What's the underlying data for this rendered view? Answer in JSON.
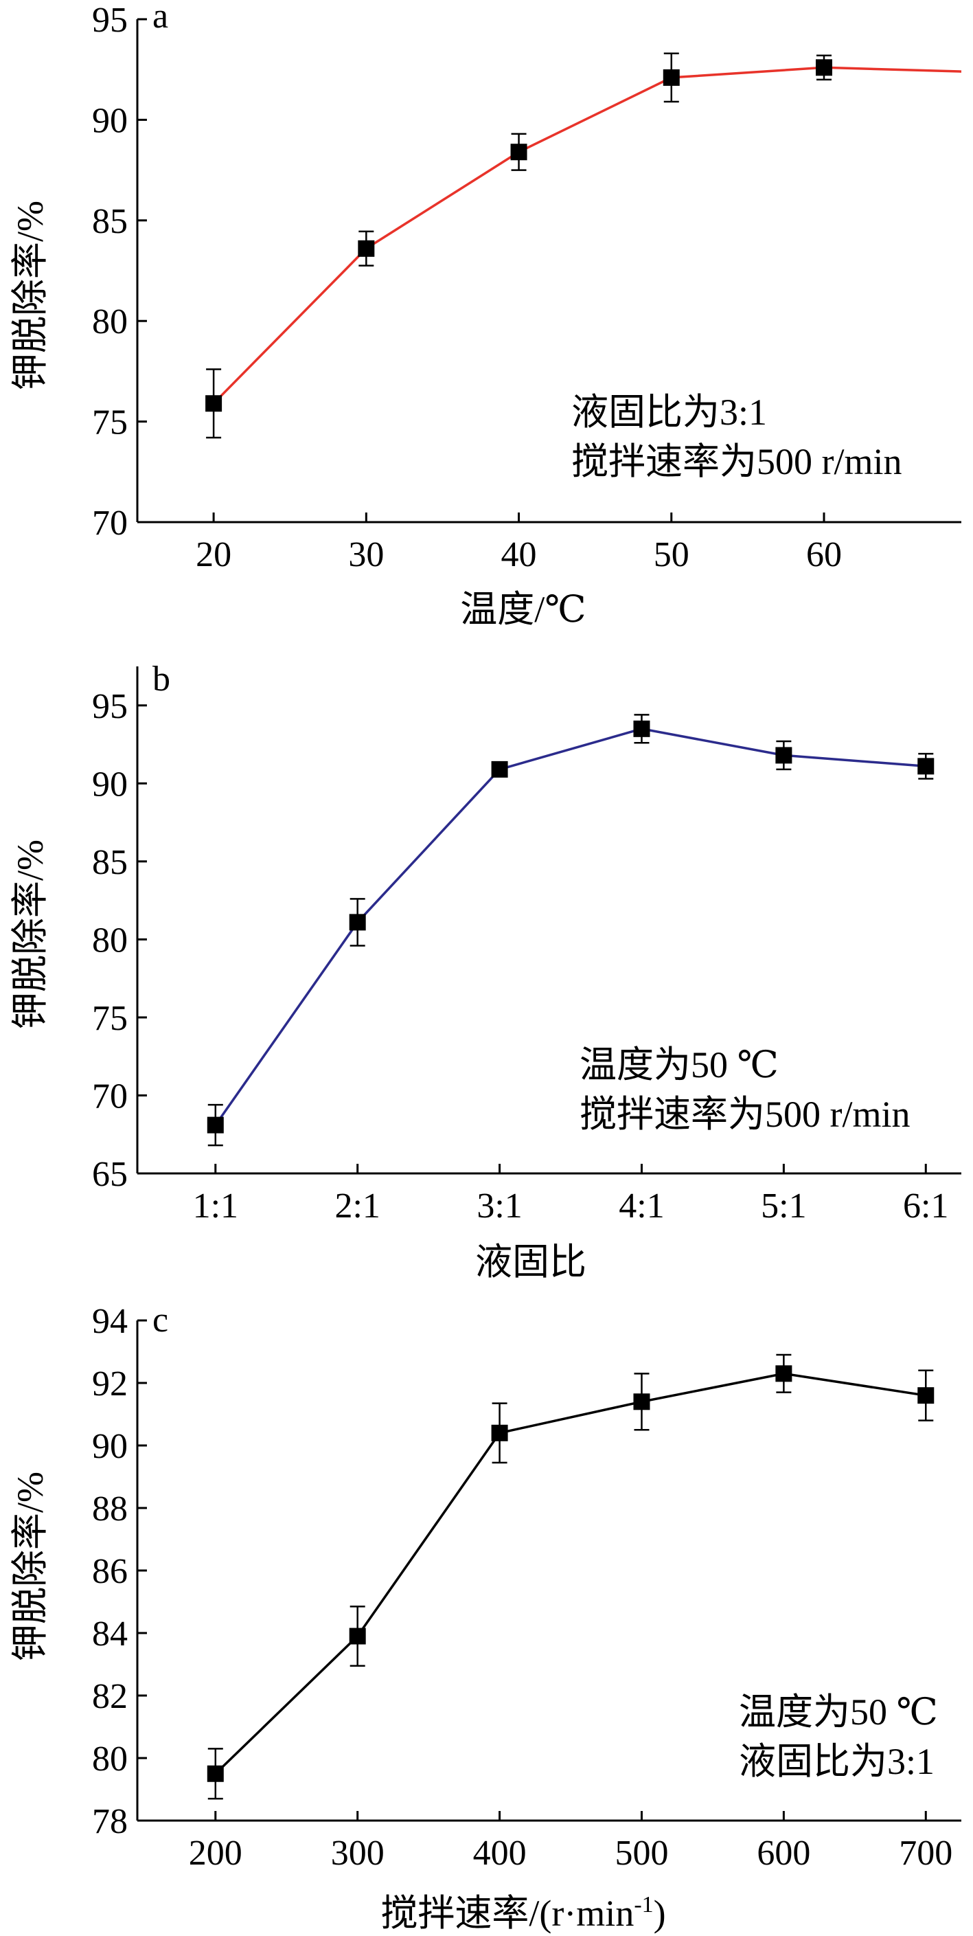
{
  "figure": {
    "panels": [
      {
        "letter": "a",
        "annotations": [
          "液固比为3:1",
          "搅拌速率为500 r/min"
        ]
      },
      {
        "letter": "b",
        "annotations": [
          "温度为50 ℃",
          "搅拌速率为500 r/min"
        ]
      },
      {
        "letter": "c",
        "annotations": [
          "温度为50 ℃",
          "液固比为3:1"
        ]
      }
    ]
  },
  "chart_data": [
    {
      "type": "line",
      "panel": "a",
      "title": "",
      "xlabel": "温度/℃",
      "ylabel": "钾脱除率/%",
      "xlim": [
        15,
        69
      ],
      "ylim": [
        70,
        95
      ],
      "xticks": [
        20,
        30,
        40,
        50,
        60
      ],
      "xtick_labels": [
        "20",
        "30",
        "40",
        "50",
        "60"
      ],
      "yticks": [
        70,
        75,
        80,
        85,
        90,
        95
      ],
      "ytick_labels": [
        "70",
        "75",
        "80",
        "85",
        "90",
        "95"
      ],
      "line_color": "#e8332a",
      "series": [
        {
          "x": [
            20,
            30,
            40,
            50,
            60
          ],
          "y": [
            75.9,
            83.6,
            88.4,
            92.1,
            92.6
          ],
          "error": [
            1.7,
            0.85,
            0.9,
            1.2,
            0.6
          ]
        }
      ],
      "line_extends_to": {
        "x": 69,
        "y": 92.4
      }
    },
    {
      "type": "line",
      "panel": "b",
      "title": "",
      "xlabel": "液固比",
      "ylabel": "钾脱除率/%",
      "xlim": [
        0.45,
        6.25
      ],
      "ylim": [
        65,
        97.5
      ],
      "xticks": [
        1,
        2,
        3,
        4,
        5,
        6
      ],
      "xtick_labels": [
        "1:1",
        "2:1",
        "3:1",
        "4:1",
        "5:1",
        "6:1"
      ],
      "yticks": [
        65,
        70,
        75,
        80,
        85,
        90,
        95
      ],
      "ytick_labels": [
        "65",
        "70",
        "75",
        "80",
        "85",
        "90",
        "95"
      ],
      "line_color": "#2b2b8c",
      "series": [
        {
          "x": [
            1,
            2,
            3,
            4,
            5,
            6
          ],
          "y": [
            68.1,
            81.1,
            90.9,
            93.5,
            91.8,
            91.1
          ],
          "error": [
            1.3,
            1.5,
            0,
            0.9,
            0.9,
            0.8
          ]
        }
      ]
    },
    {
      "type": "line",
      "panel": "c",
      "title": "",
      "xlabel": "搅拌速率/(r·min⁻¹)",
      "ylabel": "钾脱除率/%",
      "xlim": [
        145,
        725
      ],
      "ylim": [
        78,
        94
      ],
      "xticks": [
        200,
        300,
        400,
        500,
        600,
        700
      ],
      "xtick_labels": [
        "200",
        "300",
        "400",
        "500",
        "600",
        "700"
      ],
      "yticks": [
        78,
        80,
        82,
        84,
        86,
        88,
        90,
        92,
        94
      ],
      "ytick_labels": [
        "78",
        "80",
        "82",
        "84",
        "86",
        "88",
        "90",
        "92",
        "94"
      ],
      "line_color": "#000000",
      "series": [
        {
          "x": [
            200,
            300,
            400,
            500,
            600,
            700
          ],
          "y": [
            79.5,
            83.9,
            90.4,
            91.4,
            92.3,
            91.6
          ],
          "error": [
            0.8,
            0.95,
            0.95,
            0.9,
            0.6,
            0.8
          ]
        }
      ]
    }
  ]
}
